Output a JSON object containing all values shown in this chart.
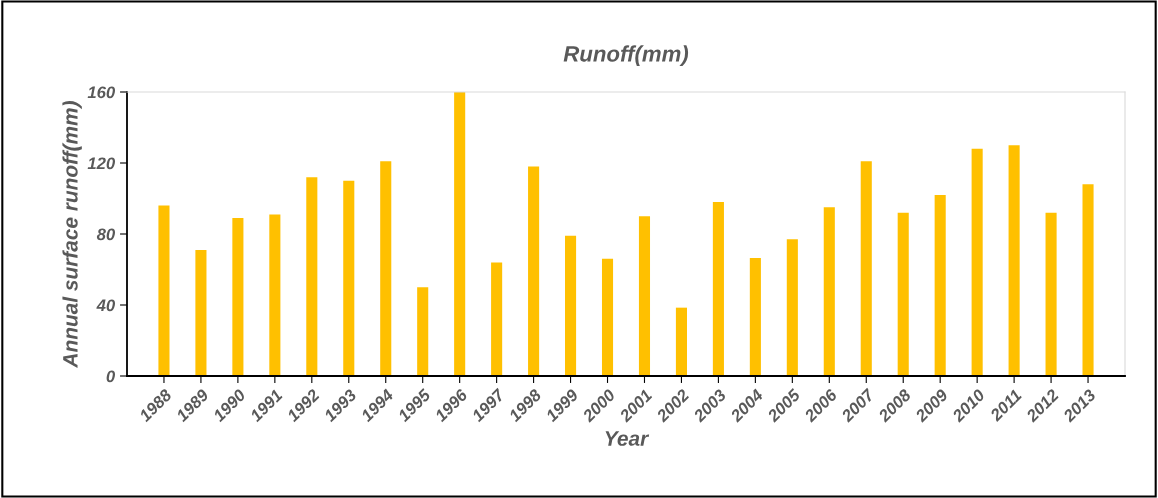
{
  "chart_data": {
    "type": "bar",
    "title": "Runoff(mm)",
    "xlabel": "Year",
    "ylabel": "Annual surface runoff(mm)",
    "categories": [
      "1988",
      "1989",
      "1990",
      "1991",
      "1992",
      "1993",
      "1994",
      "1995",
      "1996",
      "1997",
      "1998",
      "1999",
      "2000",
      "2001",
      "2002",
      "2003",
      "2004",
      "2005",
      "2006",
      "2007",
      "2008",
      "2009",
      "2010",
      "2011",
      "2012",
      "2013"
    ],
    "values": [
      96,
      71,
      89,
      91,
      112,
      110,
      121,
      50,
      160,
      64,
      118,
      79,
      66,
      90,
      38.5,
      98,
      66.5,
      77,
      95,
      121,
      92,
      102,
      128,
      130,
      92,
      108
    ],
    "color": "#ffc000",
    "ylim": [
      0,
      160
    ],
    "yticks": [
      0,
      40,
      80,
      120,
      160
    ],
    "grid": false
  }
}
